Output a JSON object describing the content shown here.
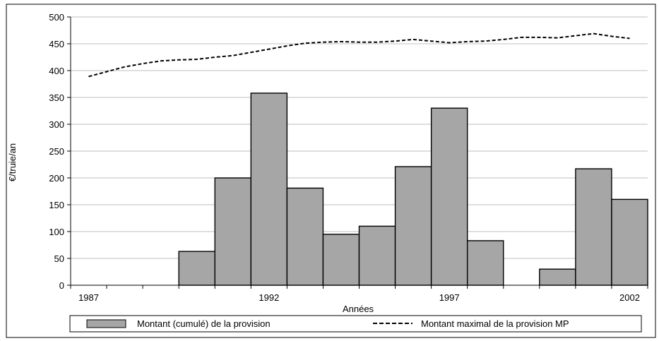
{
  "chart_data": {
    "type": "bar",
    "xlabel": "Années",
    "ylabel": "€/truie/an",
    "ylim": [
      0,
      500
    ],
    "yticks": [
      0,
      50,
      100,
      150,
      200,
      250,
      300,
      350,
      400,
      450,
      500
    ],
    "xticks": [
      "1987",
      "1992",
      "1997",
      "2002"
    ],
    "x": [
      1987,
      1988,
      1989,
      1990,
      1991,
      1992,
      1993,
      1994,
      1995,
      1996,
      1997,
      1998,
      1999,
      2000,
      2001,
      2002
    ],
    "series": [
      {
        "name": "Montant (cumulé) de la provision",
        "type": "bar",
        "color": "#a6a6a6",
        "values": [
          0,
          0,
          0,
          63,
          200,
          358,
          181,
          95,
          110,
          221,
          330,
          83,
          0,
          30,
          217,
          160
        ]
      },
      {
        "name": "Montant maximal de la provision MP",
        "type": "line",
        "color": "#000000",
        "line_style": "dashed",
        "x": [
          1987,
          1987.5,
          1988,
          1988.5,
          1989,
          1989.5,
          1990,
          1990.5,
          1991,
          1991.5,
          1992,
          1992.5,
          1993,
          1993.5,
          1994,
          1994.5,
          1995,
          1995.5,
          1996,
          1996.5,
          1997,
          1997.5,
          1998,
          1998.5,
          1999,
          1999.5,
          2000,
          2000.5,
          2001,
          2001.5,
          2002
        ],
        "values": [
          389,
          398,
          407,
          413,
          418,
          420,
          421,
          425,
          428,
          434,
          440,
          446,
          451,
          453,
          454,
          453,
          453,
          455,
          458,
          455,
          452,
          454,
          455,
          458,
          462,
          462,
          461,
          465,
          469,
          464,
          460
        ]
      }
    ],
    "grid": "horizontal",
    "legend_position": "bottom"
  }
}
